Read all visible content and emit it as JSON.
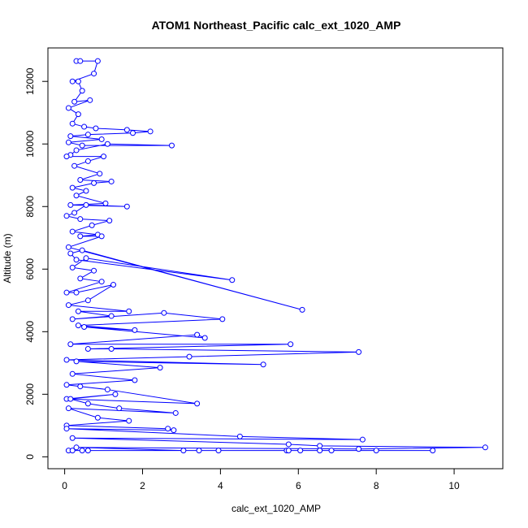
{
  "chart_data": {
    "type": "line",
    "title": "ATOM1 Northeast_Pacific calc_ext_1020_AMP",
    "xlabel": "calc_ext_1020_AMP",
    "ylabel": "Altitude (m)",
    "xlim": [
      -0.43,
      11.25
    ],
    "ylim": [
      -380,
      13070
    ],
    "xticks": [
      0,
      2,
      4,
      6,
      8,
      10
    ],
    "yticks": [
      0,
      2000,
      4000,
      6000,
      8000,
      10000,
      12000
    ],
    "grid": false,
    "legend": "none",
    "series": [
      {
        "color": "#0000ff",
        "marker": "open-circle",
        "points": [
          [
            0.3,
            12650
          ],
          [
            0.4,
            12650
          ],
          [
            0.85,
            12650
          ],
          [
            0.75,
            12250
          ],
          [
            0.2,
            12000
          ],
          [
            0.35,
            12000
          ],
          [
            0.45,
            11700
          ],
          [
            0.25,
            11350
          ],
          [
            0.65,
            11400
          ],
          [
            0.1,
            11150
          ],
          [
            0.35,
            10950
          ],
          [
            0.2,
            10650
          ],
          [
            0.5,
            10550
          ],
          [
            0.8,
            10500
          ],
          [
            1.6,
            10450
          ],
          [
            2.2,
            10400
          ],
          [
            1.75,
            10350
          ],
          [
            0.6,
            10300
          ],
          [
            0.15,
            10250
          ],
          [
            0.95,
            10150
          ],
          [
            0.1,
            10050
          ],
          [
            0.45,
            9950
          ],
          [
            2.75,
            9950
          ],
          [
            1.1,
            10000
          ],
          [
            0.3,
            9800
          ],
          [
            0.15,
            9650
          ],
          [
            0.05,
            9600
          ],
          [
            1.0,
            9600
          ],
          [
            0.6,
            9450
          ],
          [
            0.25,
            9300
          ],
          [
            0.9,
            9050
          ],
          [
            0.4,
            8850
          ],
          [
            1.2,
            8800
          ],
          [
            0.75,
            8750
          ],
          [
            0.2,
            8600
          ],
          [
            0.55,
            8500
          ],
          [
            0.3,
            8350
          ],
          [
            1.05,
            8100
          ],
          [
            0.15,
            8050
          ],
          [
            1.6,
            8000
          ],
          [
            0.55,
            8050
          ],
          [
            0.25,
            7800
          ],
          [
            0.05,
            7700
          ],
          [
            0.4,
            7600
          ],
          [
            1.15,
            7550
          ],
          [
            0.7,
            7400
          ],
          [
            0.2,
            7200
          ],
          [
            0.85,
            7100
          ],
          [
            0.4,
            7050
          ],
          [
            0.95,
            7050
          ],
          [
            0.1,
            6700
          ],
          [
            6.1,
            4700
          ],
          [
            0.45,
            6600
          ],
          [
            0.15,
            6500
          ],
          [
            0.3,
            6300
          ],
          [
            4.3,
            5650
          ],
          [
            0.55,
            6350
          ],
          [
            0.2,
            6050
          ],
          [
            0.75,
            5950
          ],
          [
            0.4,
            5700
          ],
          [
            0.95,
            5600
          ],
          [
            0.05,
            5250
          ],
          [
            0.3,
            5250
          ],
          [
            1.25,
            5500
          ],
          [
            0.6,
            5000
          ],
          [
            0.1,
            4850
          ],
          [
            1.65,
            4650
          ],
          [
            0.35,
            4650
          ],
          [
            1.2,
            4500
          ],
          [
            0.2,
            4400
          ],
          [
            2.55,
            4600
          ],
          [
            4.05,
            4400
          ],
          [
            0.35,
            4200
          ],
          [
            1.8,
            4050
          ],
          [
            0.5,
            4150
          ],
          [
            3.6,
            3800
          ],
          [
            3.4,
            3900
          ],
          [
            0.15,
            3600
          ],
          [
            5.8,
            3600
          ],
          [
            0.6,
            3450
          ],
          [
            1.2,
            3450
          ],
          [
            7.55,
            3350
          ],
          [
            3.2,
            3200
          ],
          [
            0.05,
            3100
          ],
          [
            5.1,
            2950
          ],
          [
            0.3,
            3050
          ],
          [
            2.45,
            2850
          ],
          [
            0.2,
            2650
          ],
          [
            1.8,
            2450
          ],
          [
            0.05,
            2300
          ],
          [
            0.4,
            2250
          ],
          [
            1.1,
            2150
          ],
          [
            3.4,
            1700
          ],
          [
            0.05,
            1850
          ],
          [
            1.3,
            2000
          ],
          [
            0.15,
            1850
          ],
          [
            0.6,
            1700
          ],
          [
            1.4,
            1550
          ],
          [
            2.85,
            1400
          ],
          [
            0.1,
            1550
          ],
          [
            0.85,
            1250
          ],
          [
            1.65,
            1150
          ],
          [
            0.05,
            1000
          ],
          [
            2.65,
            900
          ],
          [
            2.8,
            850
          ],
          [
            0.05,
            900
          ],
          [
            4.5,
            650
          ],
          [
            7.65,
            550
          ],
          [
            0.2,
            600
          ],
          [
            5.75,
            400
          ],
          [
            6.55,
            350
          ],
          [
            10.8,
            300
          ],
          [
            7.55,
            250
          ],
          [
            0.3,
            300
          ],
          [
            3.05,
            200
          ],
          [
            3.45,
            200
          ],
          [
            3.95,
            200
          ],
          [
            5.7,
            200
          ],
          [
            5.75,
            200
          ],
          [
            6.05,
            200
          ],
          [
            6.55,
            200
          ],
          [
            6.85,
            200
          ],
          [
            8.0,
            200
          ],
          [
            9.45,
            200
          ],
          [
            0.1,
            200
          ],
          [
            0.2,
            200
          ],
          [
            0.45,
            200
          ],
          [
            0.6,
            200
          ]
        ]
      }
    ]
  }
}
